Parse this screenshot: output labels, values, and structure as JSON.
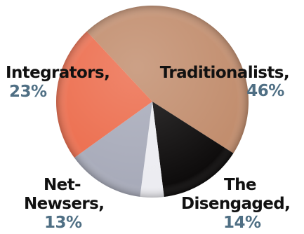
{
  "chart_data": {
    "type": "pie",
    "title": "",
    "slices": [
      {
        "label": "Traditionalists,",
        "value": 46,
        "value_label": "46%",
        "color": "#c18c6c"
      },
      {
        "label": "The Disengaged,",
        "value": 14,
        "value_label": "14%",
        "color": "#0d0b0b"
      },
      {
        "label": "",
        "value": 4,
        "value_label": "",
        "color": "#ececf1"
      },
      {
        "label": "Net-Newsers,",
        "value": 13,
        "value_label": "13%",
        "color": "#a7aab9"
      },
      {
        "label": "Integrators,",
        "value": 23,
        "value_label": "23%",
        "color": "#ec6c4c"
      }
    ],
    "labels": {
      "traditionalists": {
        "name": "Traditionalists,",
        "pct": "46%"
      },
      "integrators": {
        "name": "Integrators,",
        "pct": "23%"
      },
      "net_newsers": {
        "line1": "Net-",
        "line2": "Newsers,",
        "pct": "13%"
      },
      "disengaged": {
        "line1": "The",
        "line2": "Disengaged,",
        "pct": "14%"
      }
    },
    "legend": "none",
    "grid": false
  }
}
